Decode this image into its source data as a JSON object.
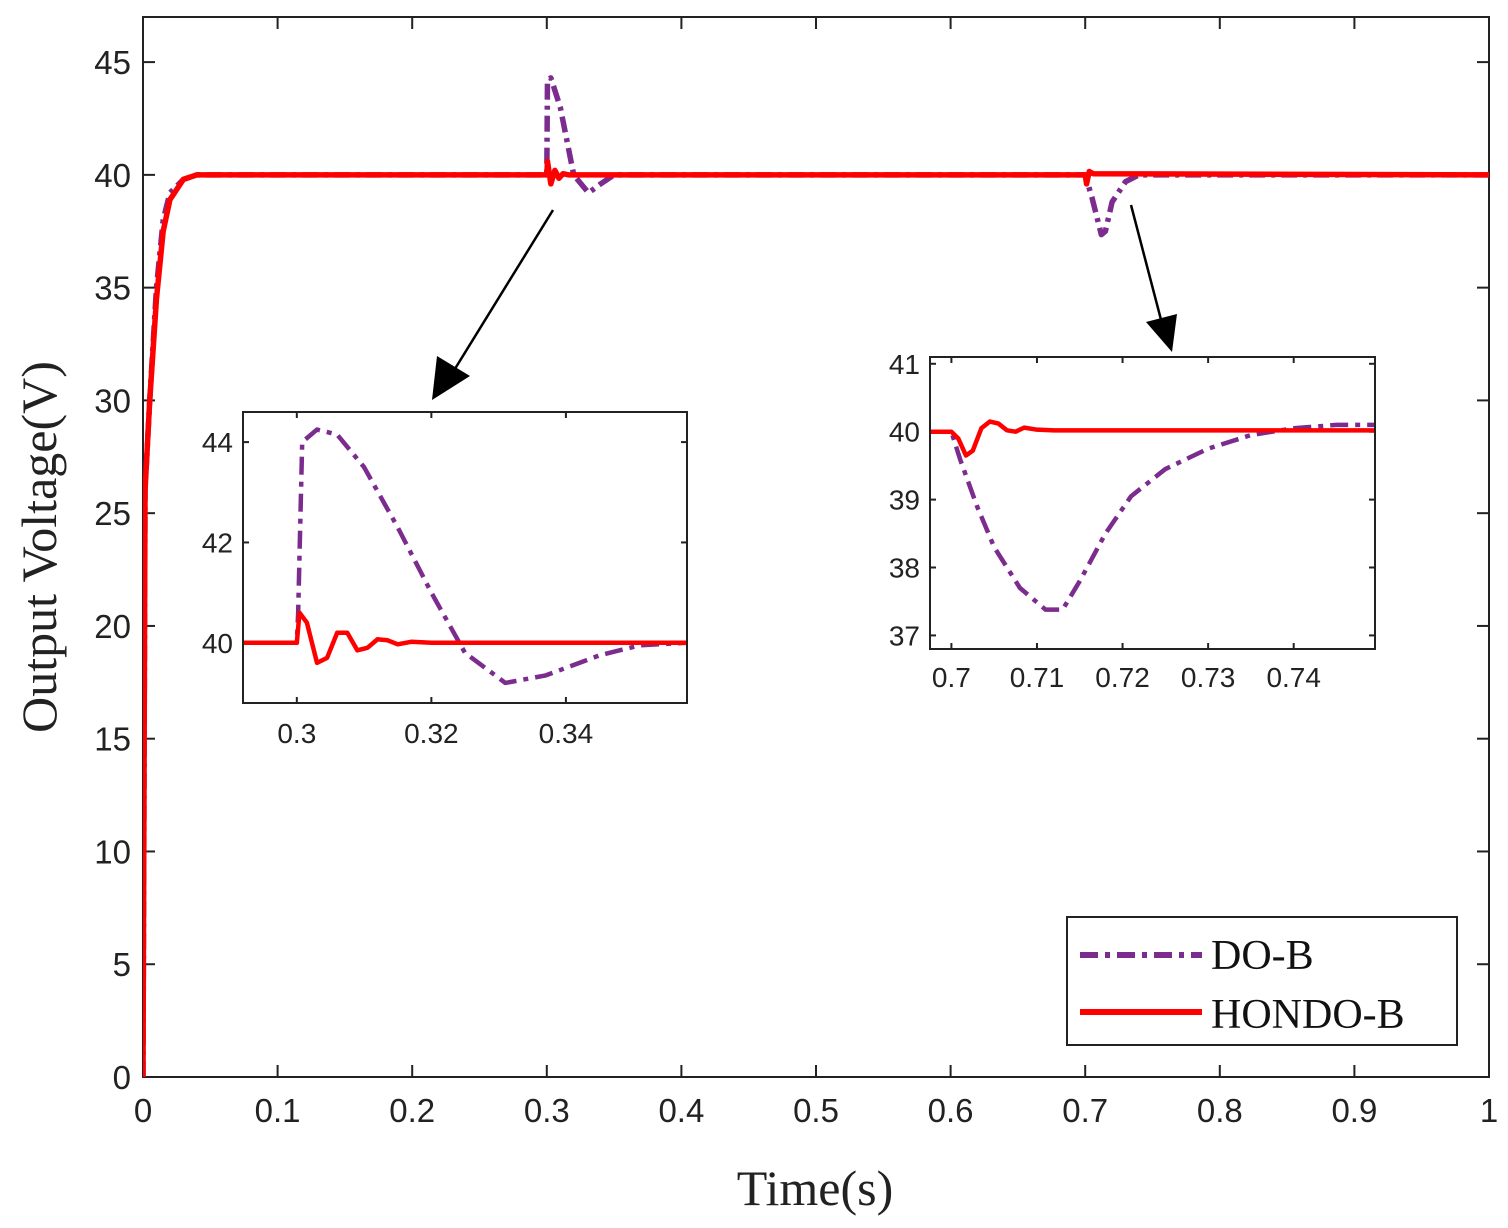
{
  "colors": {
    "do_b": "#7B2C8E",
    "hondo_b": "#FF0000",
    "axis": "#222222",
    "arrow": "#000000"
  },
  "chart_data": [
    {
      "id": "main",
      "type": "line",
      "xlabel": "Time(s)",
      "ylabel": "Output Voltage(V)",
      "xlim": [
        0,
        1
      ],
      "ylim": [
        0,
        47
      ],
      "xticks": [
        0,
        0.1,
        0.2,
        0.3,
        0.4,
        0.5,
        0.6,
        0.7,
        0.8,
        0.9,
        1
      ],
      "xtick_labels": [
        "0",
        "0.1",
        "0.2",
        "0.3",
        "0.4",
        "0.5",
        "0.6",
        "0.7",
        "0.8",
        "0.9",
        "1"
      ],
      "yticks": [
        0,
        5,
        10,
        15,
        20,
        25,
        30,
        35,
        40,
        45
      ],
      "ytick_labels": [
        "0",
        "5",
        "10",
        "15",
        "20",
        "25",
        "30",
        "35",
        "40",
        "45"
      ],
      "legend": {
        "placement": "bottom-right",
        "entries": [
          "DO-B",
          "HONDO-B"
        ]
      },
      "series": [
        {
          "name": "DO-B",
          "style": "dash-dot",
          "points": [
            [
              0,
              0
            ],
            [
              0.0015,
              26
            ],
            [
              0.005,
              30
            ],
            [
              0.01,
              35
            ],
            [
              0.015,
              38
            ],
            [
              0.02,
              39.2
            ],
            [
              0.03,
              39.8
            ],
            [
              0.04,
              40
            ],
            [
              0.3,
              40
            ],
            [
              0.3005,
              44.2
            ],
            [
              0.303,
              44.3
            ],
            [
              0.31,
              43
            ],
            [
              0.32,
              40
            ],
            [
              0.331,
              39.2
            ],
            [
              0.34,
              39.6
            ],
            [
              0.35,
              40
            ],
            [
              0.7,
              40
            ],
            [
              0.705,
              39
            ],
            [
              0.712,
              37.35
            ],
            [
              0.715,
              37.5
            ],
            [
              0.72,
              38.8
            ],
            [
              0.73,
              39.7
            ],
            [
              0.74,
              40
            ],
            [
              1,
              40
            ]
          ]
        },
        {
          "name": "HONDO-B",
          "style": "solid",
          "points": [
            [
              0,
              0
            ],
            [
              0.0015,
              26
            ],
            [
              0.005,
              30
            ],
            [
              0.01,
              34.5
            ],
            [
              0.015,
              37.5
            ],
            [
              0.02,
              38.9
            ],
            [
              0.03,
              39.8
            ],
            [
              0.04,
              40
            ],
            [
              0.3,
              40
            ],
            [
              0.3005,
              40.6
            ],
            [
              0.302,
              40
            ],
            [
              0.303,
              39.6
            ],
            [
              0.306,
              40.2
            ],
            [
              0.309,
              39.85
            ],
            [
              0.312,
              40.05
            ],
            [
              0.316,
              40
            ],
            [
              0.7,
              40
            ],
            [
              0.701,
              39.6
            ],
            [
              0.703,
              40.15
            ],
            [
              0.706,
              40.05
            ],
            [
              1,
              40
            ]
          ]
        }
      ]
    },
    {
      "id": "inset-1",
      "type": "line",
      "xlim": [
        0.292,
        0.358
      ],
      "ylim": [
        38.8,
        44.6
      ],
      "xticks": [
        0.3,
        0.32,
        0.34
      ],
      "xtick_labels": [
        "0.3",
        "0.32",
        "0.34"
      ],
      "yticks": [
        40,
        42,
        44
      ],
      "ytick_labels": [
        "40",
        "42",
        "44"
      ],
      "series": [
        {
          "name": "DO-B",
          "style": "dash-dot",
          "points": [
            [
              0.292,
              40
            ],
            [
              0.3,
              40
            ],
            [
              0.3002,
              40.6
            ],
            [
              0.3008,
              44
            ],
            [
              0.303,
              44.25
            ],
            [
              0.306,
              44.15
            ],
            [
              0.31,
              43.5
            ],
            [
              0.315,
              42.3
            ],
            [
              0.32,
              41
            ],
            [
              0.325,
              39.8
            ],
            [
              0.331,
              39.2
            ],
            [
              0.337,
              39.35
            ],
            [
              0.345,
              39.75
            ],
            [
              0.351,
              39.95
            ],
            [
              0.358,
              40
            ]
          ]
        },
        {
          "name": "HONDO-B",
          "style": "solid",
          "points": [
            [
              0.292,
              40
            ],
            [
              0.3,
              40
            ],
            [
              0.3004,
              40.6
            ],
            [
              0.3015,
              40.4
            ],
            [
              0.303,
              39.6
            ],
            [
              0.3045,
              39.7
            ],
            [
              0.306,
              40.2
            ],
            [
              0.3075,
              40.2
            ],
            [
              0.309,
              39.85
            ],
            [
              0.3105,
              39.9
            ],
            [
              0.312,
              40.07
            ],
            [
              0.3135,
              40.05
            ],
            [
              0.315,
              39.97
            ],
            [
              0.317,
              40.02
            ],
            [
              0.32,
              40
            ],
            [
              0.358,
              40
            ]
          ]
        }
      ]
    },
    {
      "id": "inset-2",
      "type": "line",
      "xlim": [
        0.6975,
        0.7495
      ],
      "ylim": [
        36.8,
        41.1
      ],
      "xticks": [
        0.7,
        0.71,
        0.72,
        0.73,
        0.74
      ],
      "xtick_labels": [
        "0.7",
        "0.71",
        "0.72",
        "0.73",
        "0.74"
      ],
      "yticks": [
        37,
        38,
        39,
        40,
        41
      ],
      "ytick_labels": [
        "37",
        "38",
        "39",
        "40",
        "41"
      ],
      "series": [
        {
          "name": "DO-B",
          "style": "dash-dot",
          "points": [
            [
              0.6975,
              40
            ],
            [
              0.7,
              40
            ],
            [
              0.701,
              39.6
            ],
            [
              0.703,
              38.9
            ],
            [
              0.705,
              38.3
            ],
            [
              0.708,
              37.7
            ],
            [
              0.711,
              37.38
            ],
            [
              0.713,
              37.38
            ],
            [
              0.715,
              37.8
            ],
            [
              0.718,
              38.5
            ],
            [
              0.721,
              39.05
            ],
            [
              0.725,
              39.45
            ],
            [
              0.73,
              39.75
            ],
            [
              0.735,
              39.95
            ],
            [
              0.74,
              40.05
            ],
            [
              0.745,
              40.1
            ],
            [
              0.7495,
              40.1
            ]
          ]
        },
        {
          "name": "HONDO-B",
          "style": "solid",
          "points": [
            [
              0.6975,
              40
            ],
            [
              0.7,
              40
            ],
            [
              0.7008,
              39.9
            ],
            [
              0.7017,
              39.65
            ],
            [
              0.7025,
              39.72
            ],
            [
              0.7035,
              40.05
            ],
            [
              0.7045,
              40.15
            ],
            [
              0.7055,
              40.12
            ],
            [
              0.7065,
              40.02
            ],
            [
              0.7075,
              40
            ],
            [
              0.7085,
              40.06
            ],
            [
              0.71,
              40.03
            ],
            [
              0.712,
              40.02
            ],
            [
              0.7495,
              40.02
            ]
          ]
        }
      ]
    }
  ]
}
